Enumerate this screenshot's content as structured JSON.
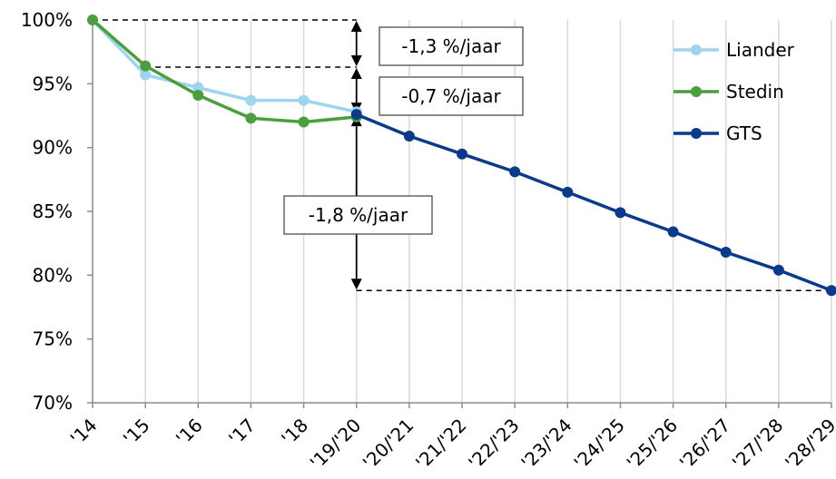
{
  "chart_data": {
    "type": "line",
    "categories": [
      "'14",
      "'15",
      "'16",
      "'17",
      "'18",
      "'19/'20",
      "'20/'21",
      "'21/'22",
      "'22/'23",
      "'23/'24",
      "'24/'25",
      "'25/'26",
      "'26/'27",
      "'27/'28",
      "'28/'29"
    ],
    "ylim": [
      70,
      100
    ],
    "yticks": [
      70,
      75,
      80,
      85,
      90,
      95,
      100
    ],
    "ytick_format": "%",
    "grid": "vertical",
    "legend": "top-right",
    "series": [
      {
        "name": "Liander",
        "color": "#9dd4f0",
        "values": [
          100,
          95.7,
          94.7,
          93.7,
          93.7,
          92.8,
          null,
          null,
          null,
          null,
          null,
          null,
          null,
          null,
          null
        ]
      },
      {
        "name": "Stedin",
        "color": "#4a9f3c",
        "values": [
          100,
          96.4,
          94.1,
          92.3,
          92.0,
          92.4,
          null,
          null,
          null,
          null,
          null,
          null,
          null,
          null,
          null
        ]
      },
      {
        "name": "GTS",
        "color": "#0a3a8c",
        "values": [
          null,
          null,
          null,
          null,
          null,
          92.6,
          90.9,
          89.5,
          88.1,
          86.5,
          84.9,
          83.4,
          81.8,
          80.4,
          78.8
        ]
      }
    ],
    "annotations": [
      {
        "text": "-1,3 %/jaar",
        "from_value": 100,
        "to_value": 96.3
      },
      {
        "text": "-0,7 %/jaar",
        "from_value": 96.3,
        "to_value": 92.6
      },
      {
        "text": "-1,8 %/jaar",
        "from_value": 92.6,
        "to_value": 78.8
      }
    ]
  }
}
